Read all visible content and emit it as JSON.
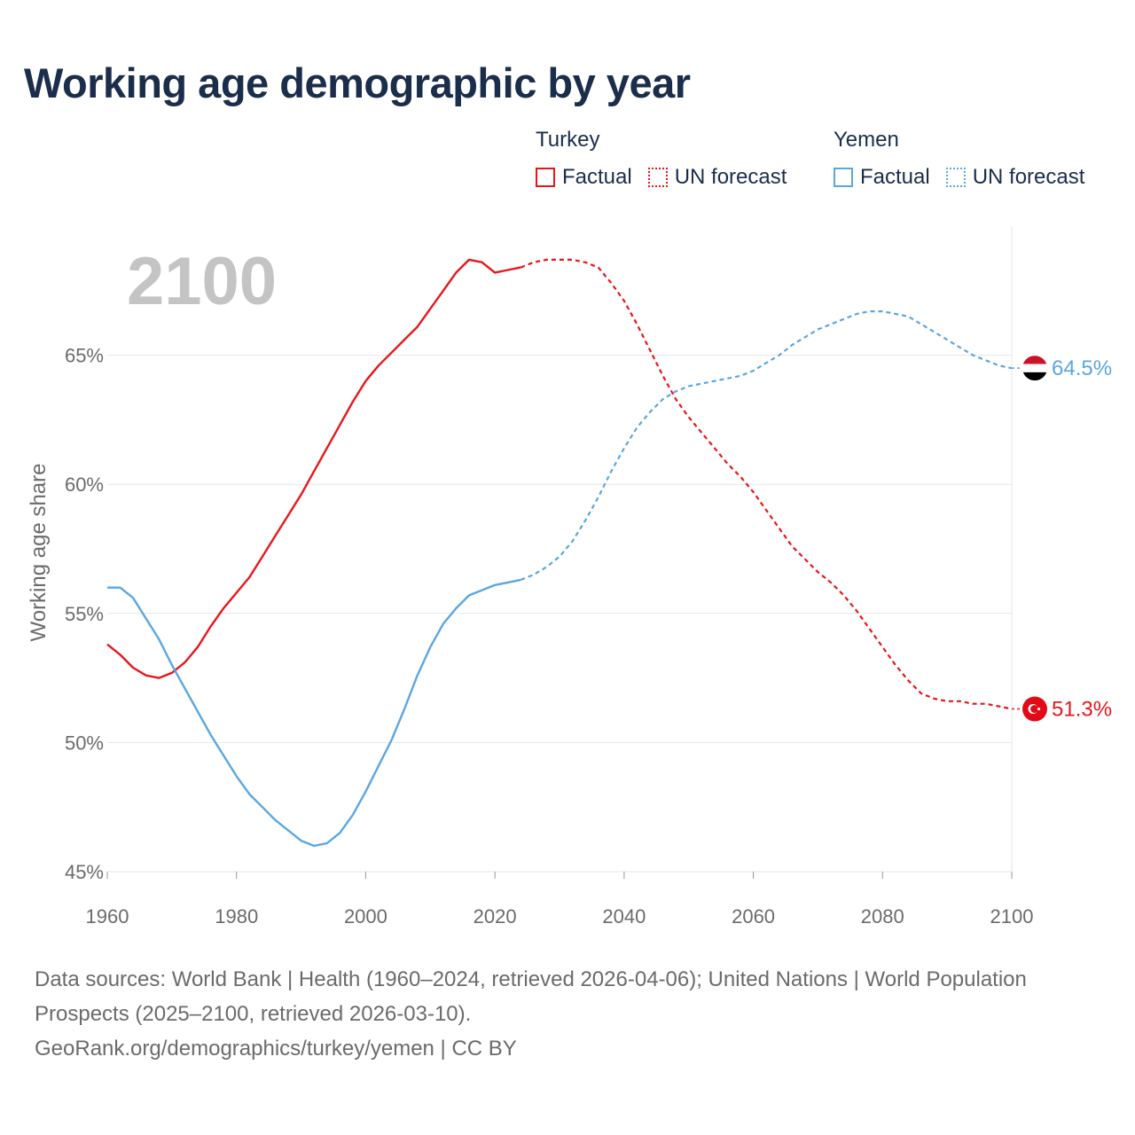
{
  "title": "Working age demographic by year",
  "legend": {
    "groups": [
      {
        "name": "Turkey",
        "factual_label": "Factual",
        "forecast_label": "UN forecast",
        "color": "#e8161b"
      },
      {
        "name": "Yemen",
        "factual_label": "Factual",
        "forecast_label": "UN forecast",
        "color": "#5aa7e0"
      }
    ]
  },
  "year_watermark": "2100",
  "footer": {
    "sources": "Data sources: World Bank | Health (1960–2024, retrieved 2026-04-06); United Nations | World Population Prospects (2025–2100, retrieved 2026-03-10).",
    "credit": "GeoRank.org/demographics/turkey/yemen | CC BY"
  },
  "chart_data": {
    "type": "line",
    "title": "Working age demographic by year",
    "xlabel": "",
    "ylabel": "Working age share",
    "xlim": [
      1960,
      2100
    ],
    "ylim": [
      45,
      70
    ],
    "x_ticks": [
      "1960",
      "1980",
      "2000",
      "2020",
      "2040",
      "2060",
      "2080",
      "2100"
    ],
    "y_ticks": [
      "45%",
      "50%",
      "55%",
      "60%",
      "65%"
    ],
    "grid": true,
    "factual_end_year": 2024,
    "series": [
      {
        "name": "Turkey",
        "color": "#e8161b",
        "end_label": "51.3%",
        "points": [
          [
            1960,
            53.8
          ],
          [
            1962,
            53.4
          ],
          [
            1964,
            52.9
          ],
          [
            1966,
            52.6
          ],
          [
            1968,
            52.5
          ],
          [
            1970,
            52.7
          ],
          [
            1972,
            53.1
          ],
          [
            1974,
            53.7
          ],
          [
            1976,
            54.5
          ],
          [
            1978,
            55.2
          ],
          [
            1980,
            55.8
          ],
          [
            1982,
            56.4
          ],
          [
            1984,
            57.2
          ],
          [
            1986,
            58.0
          ],
          [
            1988,
            58.8
          ],
          [
            1990,
            59.6
          ],
          [
            1992,
            60.5
          ],
          [
            1994,
            61.4
          ],
          [
            1996,
            62.3
          ],
          [
            1998,
            63.2
          ],
          [
            2000,
            64.0
          ],
          [
            2002,
            64.6
          ],
          [
            2004,
            65.1
          ],
          [
            2006,
            65.6
          ],
          [
            2008,
            66.1
          ],
          [
            2010,
            66.8
          ],
          [
            2012,
            67.5
          ],
          [
            2014,
            68.2
          ],
          [
            2016,
            68.7
          ],
          [
            2018,
            68.6
          ],
          [
            2020,
            68.2
          ],
          [
            2022,
            68.3
          ],
          [
            2024,
            68.4
          ],
          [
            2026,
            68.6
          ],
          [
            2028,
            68.7
          ],
          [
            2030,
            68.7
          ],
          [
            2032,
            68.7
          ],
          [
            2034,
            68.6
          ],
          [
            2036,
            68.4
          ],
          [
            2038,
            67.8
          ],
          [
            2040,
            67.1
          ],
          [
            2042,
            66.2
          ],
          [
            2044,
            65.2
          ],
          [
            2046,
            64.2
          ],
          [
            2048,
            63.3
          ],
          [
            2050,
            62.6
          ],
          [
            2052,
            62.0
          ],
          [
            2054,
            61.4
          ],
          [
            2056,
            60.8
          ],
          [
            2058,
            60.3
          ],
          [
            2060,
            59.7
          ],
          [
            2062,
            59.0
          ],
          [
            2064,
            58.3
          ],
          [
            2066,
            57.6
          ],
          [
            2068,
            57.1
          ],
          [
            2070,
            56.6
          ],
          [
            2072,
            56.2
          ],
          [
            2074,
            55.7
          ],
          [
            2076,
            55.1
          ],
          [
            2078,
            54.4
          ],
          [
            2080,
            53.7
          ],
          [
            2082,
            53.0
          ],
          [
            2084,
            52.4
          ],
          [
            2086,
            51.9
          ],
          [
            2088,
            51.7
          ],
          [
            2090,
            51.6
          ],
          [
            2092,
            51.6
          ],
          [
            2094,
            51.5
          ],
          [
            2096,
            51.5
          ],
          [
            2098,
            51.4
          ],
          [
            2100,
            51.3
          ]
        ]
      },
      {
        "name": "Yemen",
        "color": "#5aa7e0",
        "end_label": "64.5%",
        "points": [
          [
            1960,
            56.0
          ],
          [
            1962,
            56.0
          ],
          [
            1964,
            55.6
          ],
          [
            1966,
            54.8
          ],
          [
            1968,
            54.0
          ],
          [
            1970,
            53.0
          ],
          [
            1972,
            52.1
          ],
          [
            1974,
            51.2
          ],
          [
            1976,
            50.3
          ],
          [
            1978,
            49.5
          ],
          [
            1980,
            48.7
          ],
          [
            1982,
            48.0
          ],
          [
            1984,
            47.5
          ],
          [
            1986,
            47.0
          ],
          [
            1988,
            46.6
          ],
          [
            1990,
            46.2
          ],
          [
            1992,
            46.0
          ],
          [
            1994,
            46.1
          ],
          [
            1996,
            46.5
          ],
          [
            1998,
            47.2
          ],
          [
            2000,
            48.1
          ],
          [
            2002,
            49.1
          ],
          [
            2004,
            50.1
          ],
          [
            2006,
            51.3
          ],
          [
            2008,
            52.6
          ],
          [
            2010,
            53.7
          ],
          [
            2012,
            54.6
          ],
          [
            2014,
            55.2
          ],
          [
            2016,
            55.7
          ],
          [
            2018,
            55.9
          ],
          [
            2020,
            56.1
          ],
          [
            2022,
            56.2
          ],
          [
            2024,
            56.3
          ],
          [
            2026,
            56.5
          ],
          [
            2028,
            56.8
          ],
          [
            2030,
            57.2
          ],
          [
            2032,
            57.8
          ],
          [
            2034,
            58.6
          ],
          [
            2036,
            59.5
          ],
          [
            2038,
            60.5
          ],
          [
            2040,
            61.4
          ],
          [
            2042,
            62.2
          ],
          [
            2044,
            62.8
          ],
          [
            2046,
            63.3
          ],
          [
            2048,
            63.6
          ],
          [
            2050,
            63.8
          ],
          [
            2052,
            63.9
          ],
          [
            2054,
            64.0
          ],
          [
            2056,
            64.1
          ],
          [
            2058,
            64.2
          ],
          [
            2060,
            64.4
          ],
          [
            2062,
            64.7
          ],
          [
            2064,
            65.0
          ],
          [
            2066,
            65.4
          ],
          [
            2068,
            65.7
          ],
          [
            2070,
            66.0
          ],
          [
            2072,
            66.2
          ],
          [
            2074,
            66.4
          ],
          [
            2076,
            66.6
          ],
          [
            2078,
            66.7
          ],
          [
            2080,
            66.7
          ],
          [
            2082,
            66.6
          ],
          [
            2084,
            66.5
          ],
          [
            2086,
            66.2
          ],
          [
            2088,
            65.9
          ],
          [
            2090,
            65.6
          ],
          [
            2092,
            65.3
          ],
          [
            2094,
            65.0
          ],
          [
            2096,
            64.8
          ],
          [
            2098,
            64.6
          ],
          [
            2100,
            64.5
          ]
        ]
      }
    ]
  }
}
